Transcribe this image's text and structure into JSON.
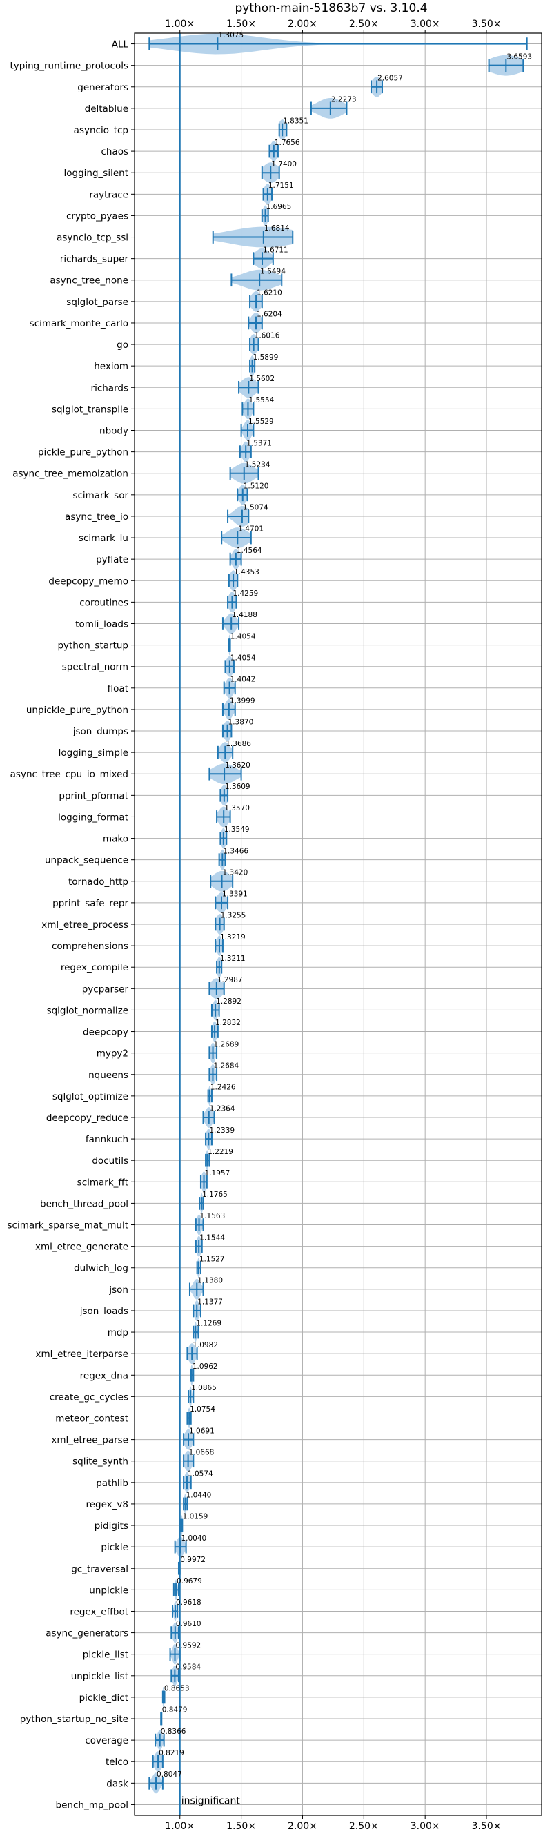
{
  "chart_data": {
    "type": "violin",
    "title": "python-main-51863b7 vs. 3.10.4",
    "xlabel": "",
    "ylabel": "",
    "xlim": [
      0.63,
      3.95
    ],
    "grid": true,
    "x_ticks": [
      1.0,
      1.5,
      2.0,
      2.5,
      3.0,
      3.5
    ],
    "x_tick_labels": [
      "1.00×",
      "1.50×",
      "2.00×",
      "2.50×",
      "3.00×",
      "3.50×"
    ],
    "reference_line": 1.0,
    "reference_note": "insignificant",
    "color": "#1f77b4",
    "violin_fill": "#a9cbe8",
    "benchmarks": [
      {
        "name": "ALL",
        "value": 1.3075,
        "low": 0.75,
        "high": 3.83,
        "spread": 0.38
      },
      {
        "name": "typing_runtime_protocols",
        "value": 3.6593,
        "low": 3.52,
        "high": 3.8,
        "spread": 0.14
      },
      {
        "name": "generators",
        "value": 2.6057,
        "low": 2.56,
        "high": 2.65,
        "spread": 0.04
      },
      {
        "name": "deltablue",
        "value": 2.2273,
        "low": 2.07,
        "high": 2.36,
        "spread": 0.1
      },
      {
        "name": "asyncio_tcp",
        "value": 1.8351,
        "low": 1.81,
        "high": 1.87,
        "spread": 0.03
      },
      {
        "name": "chaos",
        "value": 1.7656,
        "low": 1.73,
        "high": 1.8,
        "spread": 0.03
      },
      {
        "name": "logging_silent",
        "value": 1.74,
        "low": 1.67,
        "high": 1.81,
        "spread": 0.06
      },
      {
        "name": "raytrace",
        "value": 1.7151,
        "low": 1.68,
        "high": 1.75,
        "spread": 0.03
      },
      {
        "name": "crypto_pyaes",
        "value": 1.6965,
        "low": 1.67,
        "high": 1.72,
        "spread": 0.02
      },
      {
        "name": "asyncio_tcp_ssl",
        "value": 1.6814,
        "low": 1.27,
        "high": 1.92,
        "spread": 0.28
      },
      {
        "name": "richards_super",
        "value": 1.6711,
        "low": 1.6,
        "high": 1.76,
        "spread": 0.06
      },
      {
        "name": "async_tree_none",
        "value": 1.6494,
        "low": 1.42,
        "high": 1.83,
        "spread": 0.14
      },
      {
        "name": "sqlglot_parse",
        "value": 1.621,
        "low": 1.57,
        "high": 1.67,
        "spread": 0.04
      },
      {
        "name": "scimark_monte_carlo",
        "value": 1.6204,
        "low": 1.56,
        "high": 1.67,
        "spread": 0.04
      },
      {
        "name": "go",
        "value": 1.6016,
        "low": 1.57,
        "high": 1.64,
        "spread": 0.03
      },
      {
        "name": "hexiom",
        "value": 1.5899,
        "low": 1.57,
        "high": 1.61,
        "spread": 0.02
      },
      {
        "name": "richards",
        "value": 1.5602,
        "low": 1.48,
        "high": 1.64,
        "spread": 0.06
      },
      {
        "name": "sqlglot_transpile",
        "value": 1.5554,
        "low": 1.51,
        "high": 1.6,
        "spread": 0.03
      },
      {
        "name": "nbody",
        "value": 1.5529,
        "low": 1.5,
        "high": 1.6,
        "spread": 0.03
      },
      {
        "name": "pickle_pure_python",
        "value": 1.5371,
        "low": 1.49,
        "high": 1.58,
        "spread": 0.03
      },
      {
        "name": "async_tree_memoization",
        "value": 1.5234,
        "low": 1.41,
        "high": 1.64,
        "spread": 0.08
      },
      {
        "name": "scimark_sor",
        "value": 1.512,
        "low": 1.47,
        "high": 1.55,
        "spread": 0.03
      },
      {
        "name": "async_tree_io",
        "value": 1.5074,
        "low": 1.39,
        "high": 1.56,
        "spread": 0.06
      },
      {
        "name": "scimark_lu",
        "value": 1.4701,
        "low": 1.34,
        "high": 1.58,
        "spread": 0.08
      },
      {
        "name": "pyflate",
        "value": 1.4564,
        "low": 1.41,
        "high": 1.5,
        "spread": 0.03
      },
      {
        "name": "deepcopy_memo",
        "value": 1.4353,
        "low": 1.4,
        "high": 1.47,
        "spread": 0.03
      },
      {
        "name": "coroutines",
        "value": 1.4259,
        "low": 1.39,
        "high": 1.46,
        "spread": 0.03
      },
      {
        "name": "tomli_loads",
        "value": 1.4188,
        "low": 1.35,
        "high": 1.48,
        "spread": 0.04
      },
      {
        "name": "python_startup",
        "value": 1.4054,
        "low": 1.4,
        "high": 1.41,
        "spread": 0.01
      },
      {
        "name": "spectral_norm",
        "value": 1.4054,
        "low": 1.37,
        "high": 1.44,
        "spread": 0.03
      },
      {
        "name": "float",
        "value": 1.4042,
        "low": 1.36,
        "high": 1.45,
        "spread": 0.03
      },
      {
        "name": "unpickle_pure_python",
        "value": 1.3999,
        "low": 1.35,
        "high": 1.45,
        "spread": 0.03
      },
      {
        "name": "json_dumps",
        "value": 1.387,
        "low": 1.35,
        "high": 1.42,
        "spread": 0.03
      },
      {
        "name": "logging_simple",
        "value": 1.3686,
        "low": 1.31,
        "high": 1.43,
        "spread": 0.04
      },
      {
        "name": "async_tree_cpu_io_mixed",
        "value": 1.362,
        "low": 1.24,
        "high": 1.5,
        "spread": 0.09
      },
      {
        "name": "pprint_pformat",
        "value": 1.3609,
        "low": 1.33,
        "high": 1.39,
        "spread": 0.03
      },
      {
        "name": "logging_format",
        "value": 1.357,
        "low": 1.3,
        "high": 1.41,
        "spread": 0.04
      },
      {
        "name": "mako",
        "value": 1.3549,
        "low": 1.33,
        "high": 1.38,
        "spread": 0.02
      },
      {
        "name": "unpack_sequence",
        "value": 1.3466,
        "low": 1.32,
        "high": 1.37,
        "spread": 0.02
      },
      {
        "name": "tornado_http",
        "value": 1.342,
        "low": 1.25,
        "high": 1.43,
        "spread": 0.07
      },
      {
        "name": "pprint_safe_repr",
        "value": 1.3391,
        "low": 1.29,
        "high": 1.39,
        "spread": 0.04
      },
      {
        "name": "xml_etree_process",
        "value": 1.3255,
        "low": 1.29,
        "high": 1.36,
        "spread": 0.03
      },
      {
        "name": "comprehensions",
        "value": 1.3219,
        "low": 1.29,
        "high": 1.35,
        "spread": 0.02
      },
      {
        "name": "regex_compile",
        "value": 1.3211,
        "low": 1.3,
        "high": 1.34,
        "spread": 0.02
      },
      {
        "name": "pycparser",
        "value": 1.2987,
        "low": 1.24,
        "high": 1.36,
        "spread": 0.05
      },
      {
        "name": "sqlglot_normalize",
        "value": 1.2892,
        "low": 1.26,
        "high": 1.32,
        "spread": 0.02
      },
      {
        "name": "deepcopy",
        "value": 1.2832,
        "low": 1.26,
        "high": 1.31,
        "spread": 0.02
      },
      {
        "name": "mypy2",
        "value": 1.2689,
        "low": 1.24,
        "high": 1.3,
        "spread": 0.02
      },
      {
        "name": "nqueens",
        "value": 1.2684,
        "low": 1.24,
        "high": 1.3,
        "spread": 0.02
      },
      {
        "name": "sqlglot_optimize",
        "value": 1.2426,
        "low": 1.23,
        "high": 1.26,
        "spread": 0.01
      },
      {
        "name": "deepcopy_reduce",
        "value": 1.2364,
        "low": 1.19,
        "high": 1.28,
        "spread": 0.03
      },
      {
        "name": "fannkuch",
        "value": 1.2339,
        "low": 1.21,
        "high": 1.26,
        "spread": 0.02
      },
      {
        "name": "docutils",
        "value": 1.2219,
        "low": 1.21,
        "high": 1.24,
        "spread": 0.01
      },
      {
        "name": "scimark_fft",
        "value": 1.1957,
        "low": 1.17,
        "high": 1.22,
        "spread": 0.02
      },
      {
        "name": "bench_thread_pool",
        "value": 1.1765,
        "low": 1.16,
        "high": 1.19,
        "spread": 0.01
      },
      {
        "name": "scimark_sparse_mat_mult",
        "value": 1.1563,
        "low": 1.13,
        "high": 1.19,
        "spread": 0.02
      },
      {
        "name": "xml_etree_generate",
        "value": 1.1544,
        "low": 1.13,
        "high": 1.18,
        "spread": 0.02
      },
      {
        "name": "dulwich_log",
        "value": 1.1527,
        "low": 1.14,
        "high": 1.17,
        "spread": 0.01
      },
      {
        "name": "json",
        "value": 1.138,
        "low": 1.08,
        "high": 1.19,
        "spread": 0.03
      },
      {
        "name": "json_loads",
        "value": 1.1377,
        "low": 1.11,
        "high": 1.17,
        "spread": 0.02
      },
      {
        "name": "mdp",
        "value": 1.1269,
        "low": 1.11,
        "high": 1.15,
        "spread": 0.01
      },
      {
        "name": "xml_etree_iterparse",
        "value": 1.0982,
        "low": 1.06,
        "high": 1.14,
        "spread": 0.03
      },
      {
        "name": "regex_dna",
        "value": 1.0962,
        "low": 1.09,
        "high": 1.11,
        "spread": 0.01
      },
      {
        "name": "create_gc_cycles",
        "value": 1.0865,
        "low": 1.07,
        "high": 1.11,
        "spread": 0.01
      },
      {
        "name": "meteor_contest",
        "value": 1.0754,
        "low": 1.06,
        "high": 1.09,
        "spread": 0.01
      },
      {
        "name": "xml_etree_parse",
        "value": 1.0691,
        "low": 1.03,
        "high": 1.11,
        "spread": 0.03
      },
      {
        "name": "sqlite_synth",
        "value": 1.0668,
        "low": 1.03,
        "high": 1.11,
        "spread": 0.03
      },
      {
        "name": "pathlib",
        "value": 1.0574,
        "low": 1.03,
        "high": 1.09,
        "spread": 0.02
      },
      {
        "name": "regex_v8",
        "value": 1.044,
        "low": 1.03,
        "high": 1.06,
        "spread": 0.01
      },
      {
        "name": "pidigits",
        "value": 1.0159,
        "low": 1.01,
        "high": 1.02,
        "spread": 0.005
      },
      {
        "name": "pickle",
        "value": 1.004,
        "low": 0.96,
        "high": 1.05,
        "spread": 0.03
      },
      {
        "name": "gc_traversal",
        "value": 0.9972,
        "low": 0.99,
        "high": 1.0,
        "spread": 0.005
      },
      {
        "name": "unpickle",
        "value": 0.9679,
        "low": 0.95,
        "high": 0.99,
        "spread": 0.01
      },
      {
        "name": "regex_effbot",
        "value": 0.9618,
        "low": 0.94,
        "high": 0.98,
        "spread": 0.01
      },
      {
        "name": "async_generators",
        "value": 0.961,
        "low": 0.93,
        "high": 0.99,
        "spread": 0.02
      },
      {
        "name": "pickle_list",
        "value": 0.9592,
        "low": 0.92,
        "high": 1.0,
        "spread": 0.02
      },
      {
        "name": "unpickle_list",
        "value": 0.9584,
        "low": 0.93,
        "high": 0.99,
        "spread": 0.02
      },
      {
        "name": "pickle_dict",
        "value": 0.8653,
        "low": 0.86,
        "high": 0.875,
        "spread": 0.008
      },
      {
        "name": "python_startup_no_site",
        "value": 0.8479,
        "low": 0.845,
        "high": 0.851,
        "spread": 0.004
      },
      {
        "name": "coverage",
        "value": 0.8366,
        "low": 0.8,
        "high": 0.87,
        "spread": 0.02
      },
      {
        "name": "telco",
        "value": 0.8219,
        "low": 0.78,
        "high": 0.86,
        "spread": 0.03
      },
      {
        "name": "dask",
        "value": 0.8047,
        "low": 0.75,
        "high": 0.86,
        "spread": 0.03
      },
      {
        "name": "bench_mp_pool",
        "value": null,
        "low": null,
        "high": null,
        "spread": 0,
        "label": "insignificant"
      }
    ]
  }
}
